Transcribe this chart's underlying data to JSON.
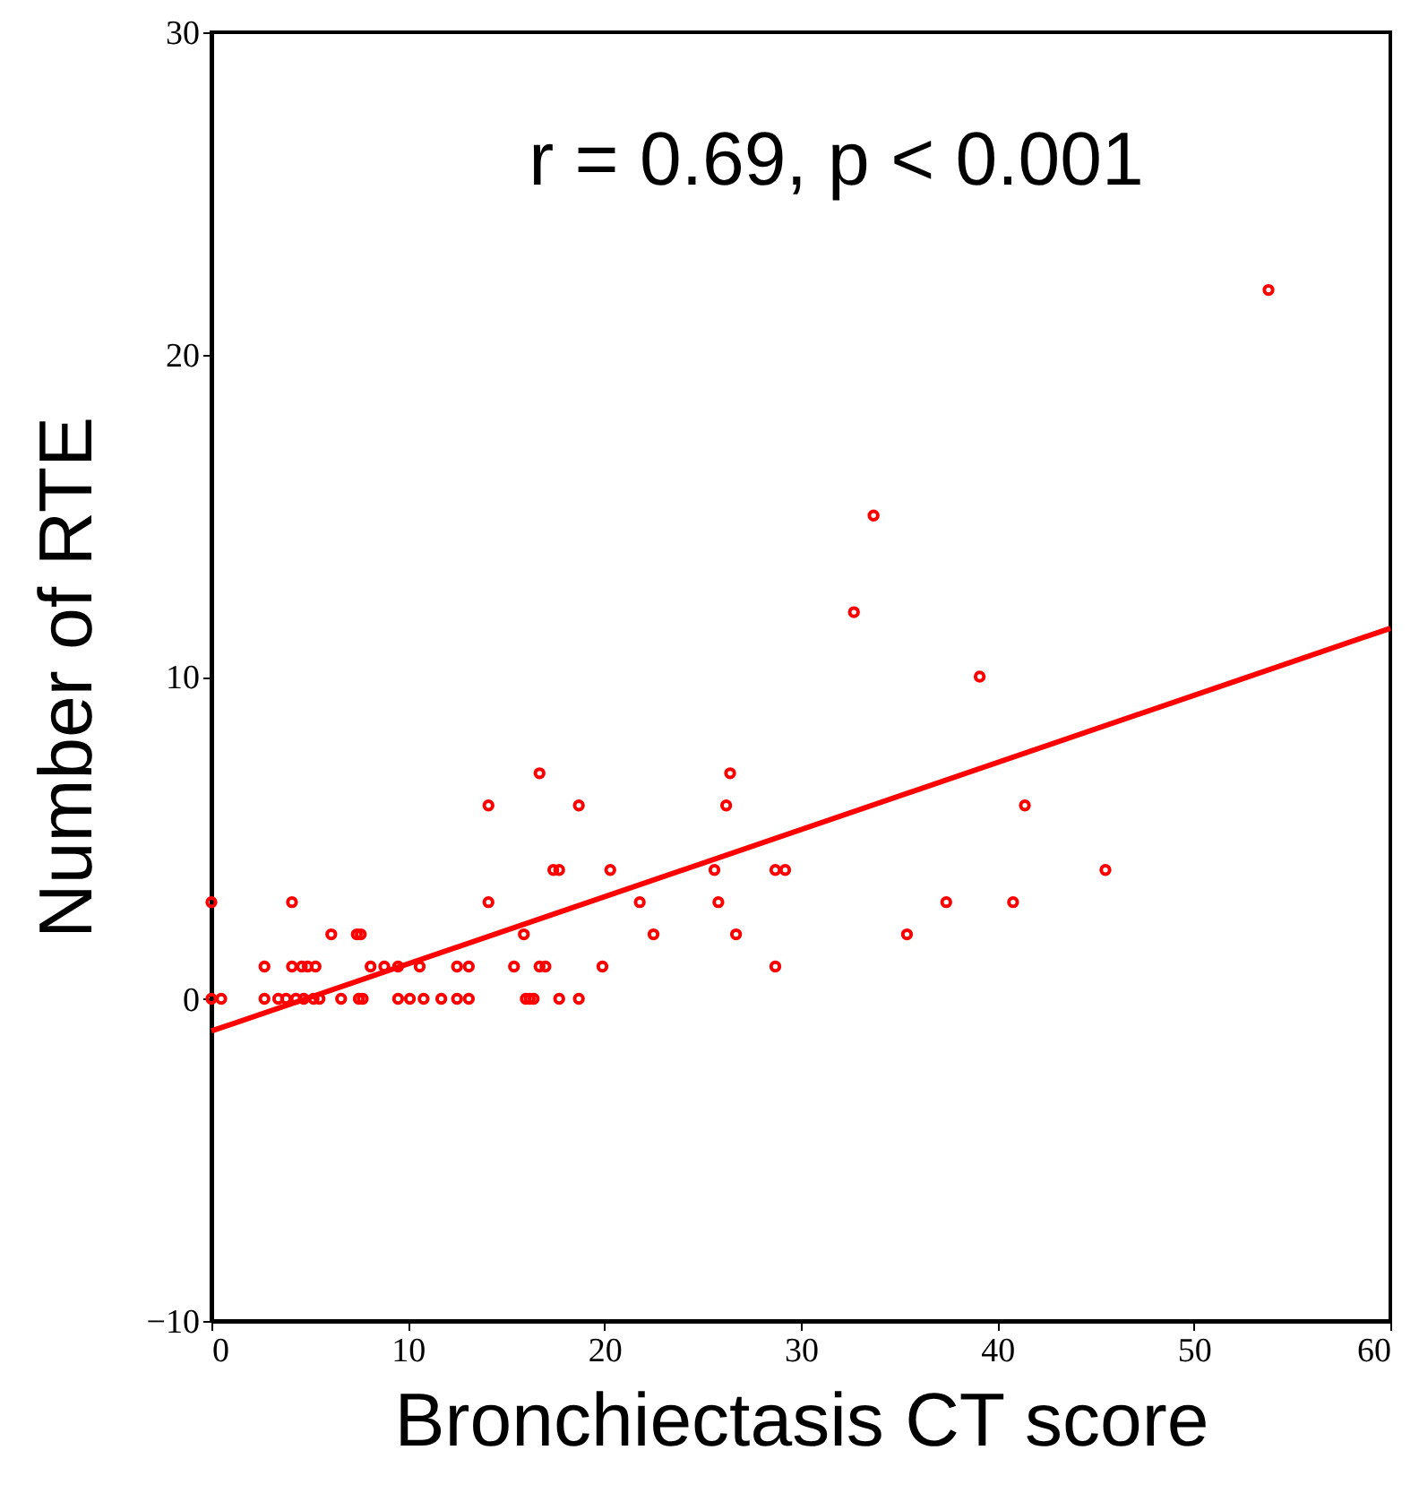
{
  "chart_data": {
    "type": "scatter",
    "xlabel": "Bronchiectasis CT score",
    "ylabel": "Number of RTE",
    "annotations": [
      "r = 0.69, p < 0.001"
    ],
    "xlim": [
      0,
      60
    ],
    "xticks": [
      0,
      10,
      20,
      30,
      40,
      50,
      60
    ],
    "ylim": [
      -10,
      30
    ],
    "yticks": [
      -10,
      0,
      10,
      20,
      30
    ],
    "grid": false,
    "series": [
      {
        "marker": "circle",
        "color": "#ff0000",
        "x": [
          0,
          0,
          0.5,
          2.7,
          2.7,
          3.4,
          3.8,
          4.1,
          4.1,
          4.3,
          4.6,
          4.7,
          4.9,
          5.2,
          5.3,
          5.5,
          6.1,
          6.6,
          7.4,
          7.5,
          7.6,
          7.7,
          8.1,
          8.8,
          9.5,
          9.5,
          10.1,
          10.6,
          10.8,
          11.7,
          12.5,
          12.5,
          13.1,
          13.1,
          14.1,
          14.1,
          15.4,
          15.9,
          16.0,
          16.2,
          16.4,
          16.7,
          16.7,
          17.0,
          17.4,
          17.7,
          17.7,
          18.7,
          18.7,
          19.9,
          20.3,
          21.8,
          22.5,
          25.6,
          25.8,
          26.2,
          26.4,
          26.7,
          28.7,
          29.2,
          28.7,
          32.7,
          33.7,
          35.4,
          37.4,
          39.1,
          40.8,
          41.4,
          45.5,
          53.8
        ],
        "values": [
          3,
          0,
          0,
          1,
          0,
          0,
          0,
          1,
          3,
          0,
          1,
          0,
          1,
          0,
          1,
          0,
          2,
          0,
          2,
          0,
          2,
          0,
          1,
          1,
          1,
          0,
          0,
          1,
          0,
          0,
          1,
          0,
          1,
          0,
          6,
          3,
          1,
          2,
          0,
          0,
          0,
          7,
          1,
          1,
          4,
          4,
          0,
          6,
          0,
          1,
          4,
          3,
          2,
          4,
          3,
          6,
          7,
          2,
          4,
          4,
          1,
          12,
          15,
          2,
          3,
          10,
          3,
          6,
          4,
          22
        ]
      },
      {
        "type": "line",
        "marker": "none",
        "color": "#ff0000",
        "x": [
          0,
          60
        ],
        "values": [
          -1.0,
          11.5
        ]
      }
    ]
  }
}
